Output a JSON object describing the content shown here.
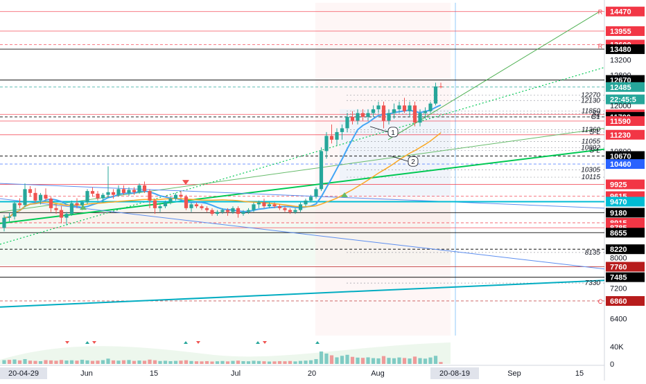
{
  "chart_data": {
    "type": "candlestick",
    "title": "",
    "xlabel": "",
    "ylabel": "",
    "ylim": [
      5950,
      14700
    ],
    "volume_ylim": [
      0,
      60000
    ],
    "price_axis_labels": [
      "13200",
      "12800",
      "12000",
      "10800",
      "8000",
      "7200",
      "6400"
    ],
    "price_tags": [
      {
        "value": 14470,
        "label": "14470",
        "color": "#f23645"
      },
      {
        "value": 13955,
        "label": "13955",
        "color": "#f23645"
      },
      {
        "value": 13600,
        "label": "13600",
        "color": "#f23645"
      },
      {
        "value": 13480,
        "label": "13480",
        "color": "#000000"
      },
      {
        "value": 12670,
        "label": "12670",
        "color": "#000000"
      },
      {
        "value": 12485,
        "label": "12485",
        "color": "#26a69a"
      },
      {
        "value": 12160,
        "label": "22:45:5",
        "color": "#26a69a"
      },
      {
        "value": 11765,
        "label": "11765",
        "color": "#f23645"
      },
      {
        "value": 11700,
        "label": "11700",
        "color": "#000000"
      },
      {
        "value": 11590,
        "label": "11590",
        "color": "#f23645"
      },
      {
        "value": 11230,
        "label": "11230",
        "color": "#f23645"
      },
      {
        "value": 10670,
        "label": "10670",
        "color": "#000000"
      },
      {
        "value": 10460,
        "label": "10460",
        "color": "#2962ff"
      },
      {
        "value": 9925,
        "label": "9925",
        "color": "#f23645"
      },
      {
        "value": 9615,
        "label": "9615",
        "color": "#f23645"
      },
      {
        "value": 9470,
        "label": "9470",
        "color": "#00bcd4"
      },
      {
        "value": 9180,
        "label": "9180",
        "color": "#000000"
      },
      {
        "value": 8915,
        "label": "8915",
        "color": "#f23645"
      },
      {
        "value": 8785,
        "label": "8785",
        "color": "#f23645"
      },
      {
        "value": 8655,
        "label": "8655",
        "color": "#000000"
      },
      {
        "value": 8220,
        "label": "8220",
        "color": "#000000"
      },
      {
        "value": 7760,
        "label": "7760",
        "color": "#b71c1c"
      },
      {
        "value": 7485,
        "label": "7485",
        "color": "#000000"
      },
      {
        "value": 6860,
        "label": "6860",
        "color": "#b71c1c"
      }
    ],
    "level_notes": [
      {
        "value": 12270,
        "label": "12270"
      },
      {
        "value": 12130,
        "label": "12130"
      },
      {
        "value": 11850,
        "label": "11850"
      },
      {
        "value": 11780,
        "label": "S2"
      },
      {
        "value": 11700,
        "label": "G1"
      },
      {
        "value": 11360,
        "label": "11360"
      },
      {
        "value": 11300,
        "label": "S-L"
      },
      {
        "value": 11055,
        "label": "11055"
      },
      {
        "value": 10892,
        "label": "10892"
      },
      {
        "value": 10820,
        "label": "S-L"
      },
      {
        "value": 10305,
        "label": "10305"
      },
      {
        "value": 10115,
        "label": "10115"
      },
      {
        "value": 8135,
        "label": "8135"
      },
      {
        "value": 7330,
        "label": "7330"
      }
    ],
    "edge_markers": [
      {
        "value": 14470,
        "label": "R"
      },
      {
        "value": 13570,
        "label": "R"
      },
      {
        "value": 6860,
        "label": "C"
      }
    ],
    "callouts": [
      {
        "label": "1",
        "value": 11300
      },
      {
        "label": "2",
        "value": 10530
      }
    ],
    "volume_axis_labels": [
      "40K",
      "0"
    ],
    "x_ticks": [
      "Jun",
      "15",
      "Jul",
      "20",
      "Aug",
      "Sep",
      "15"
    ],
    "start_date_label": "20-04-29",
    "current_date_label": "20-08-19",
    "candles": [
      [
        8780,
        9120,
        8690,
        9050
      ],
      [
        9050,
        9180,
        8950,
        9080
      ],
      [
        9080,
        9470,
        9000,
        9430
      ],
      [
        9430,
        9560,
        9300,
        9380
      ],
      [
        9380,
        9950,
        9320,
        9800
      ],
      [
        9800,
        9880,
        9600,
        9700
      ],
      [
        9700,
        9830,
        9450,
        9500
      ],
      [
        9500,
        9700,
        9400,
        9650
      ],
      [
        9650,
        9820,
        9500,
        9550
      ],
      [
        9550,
        9600,
        9200,
        9300
      ],
      [
        9300,
        9400,
        9150,
        9250
      ],
      [
        9250,
        9350,
        8900,
        9050
      ],
      [
        9050,
        9200,
        8850,
        9150
      ],
      [
        9150,
        9500,
        9100,
        9430
      ],
      [
        9430,
        9560,
        9300,
        9380
      ],
      [
        9380,
        9500,
        9250,
        9450
      ],
      [
        9450,
        9800,
        9400,
        9750
      ],
      [
        9750,
        9850,
        9600,
        9680
      ],
      [
        9680,
        9750,
        9500,
        9560
      ],
      [
        9560,
        9700,
        9450,
        9650
      ],
      [
        9650,
        10400,
        9560,
        9720
      ],
      [
        9720,
        9800,
        9550,
        9650
      ],
      [
        9650,
        9900,
        9600,
        9800
      ],
      [
        9800,
        9900,
        9650,
        9700
      ],
      [
        9700,
        9850,
        9620,
        9780
      ],
      [
        9780,
        9850,
        9650,
        9720
      ],
      [
        9720,
        9950,
        9680,
        9900
      ],
      [
        9900,
        10000,
        9700,
        9750
      ],
      [
        9750,
        9800,
        9300,
        9500
      ],
      [
        9500,
        9550,
        9150,
        9300
      ],
      [
        9300,
        9400,
        9200,
        9350
      ],
      [
        9350,
        9500,
        9300,
        9450
      ],
      [
        9450,
        9600,
        9400,
        9550
      ],
      [
        9550,
        9700,
        9500,
        9650
      ],
      [
        9650,
        9750,
        9550,
        9600
      ],
      [
        9600,
        9650,
        9250,
        9300
      ],
      [
        9300,
        9450,
        9200,
        9400
      ],
      [
        9400,
        9450,
        9300,
        9350
      ],
      [
        9350,
        9400,
        9250,
        9300
      ],
      [
        9300,
        9350,
        9200,
        9250
      ],
      [
        9250,
        9300,
        9100,
        9150
      ],
      [
        9150,
        9250,
        9100,
        9200
      ],
      [
        9200,
        9300,
        9150,
        9250
      ],
      [
        9250,
        9300,
        9100,
        9200
      ],
      [
        9200,
        9350,
        9150,
        9300
      ],
      [
        9300,
        9350,
        9050,
        9150
      ],
      [
        9150,
        9250,
        9100,
        9200
      ],
      [
        9200,
        9300,
        9150,
        9250
      ],
      [
        9250,
        9450,
        9200,
        9400
      ],
      [
        9400,
        9500,
        9300,
        9450
      ],
      [
        9450,
        9550,
        9300,
        9350
      ],
      [
        9350,
        9450,
        9300,
        9400
      ],
      [
        9400,
        9450,
        9300,
        9350
      ],
      [
        9350,
        9400,
        9250,
        9300
      ],
      [
        9300,
        9350,
        9200,
        9250
      ],
      [
        9250,
        9300,
        9150,
        9200
      ],
      [
        9200,
        9300,
        9150,
        9250
      ],
      [
        9250,
        9450,
        9200,
        9400
      ],
      [
        9400,
        9550,
        9350,
        9500
      ],
      [
        9500,
        9650,
        9450,
        9600
      ],
      [
        9600,
        9850,
        9550,
        9800
      ],
      [
        9800,
        10900,
        9750,
        10800
      ],
      [
        10800,
        11300,
        10600,
        11200
      ],
      [
        11200,
        11500,
        11000,
        11100
      ],
      [
        11100,
        11400,
        10950,
        11300
      ],
      [
        11300,
        11500,
        11100,
        11400
      ],
      [
        11400,
        11800,
        11300,
        11700
      ],
      [
        11700,
        11850,
        11500,
        11600
      ],
      [
        11600,
        11900,
        11500,
        11800
      ],
      [
        11800,
        11900,
        11600,
        11700
      ],
      [
        11700,
        11900,
        11600,
        11800
      ],
      [
        11800,
        12000,
        11700,
        11900
      ],
      [
        11900,
        12100,
        11800,
        12000
      ],
      [
        12000,
        12100,
        11400,
        11600
      ],
      [
        11600,
        11900,
        11500,
        11800
      ],
      [
        11800,
        12050,
        11650,
        11900
      ],
      [
        11900,
        12100,
        11800,
        12000
      ],
      [
        12000,
        12200,
        11800,
        11850
      ],
      [
        11850,
        12100,
        11700,
        12000
      ],
      [
        12000,
        12100,
        11450,
        11550
      ],
      [
        11550,
        11900,
        11450,
        11800
      ],
      [
        11800,
        11950,
        11650,
        11850
      ],
      [
        11850,
        12100,
        11800,
        12050
      ],
      [
        12050,
        12600,
        12000,
        12500
      ],
      [
        12500,
        12600,
        12450,
        12485
      ]
    ],
    "volumes": [
      3000,
      3200,
      3500,
      2800,
      3800,
      2600,
      2400,
      2200,
      3000,
      2800,
      2500,
      3100,
      2700,
      2900,
      2600,
      3300,
      2800,
      2400,
      2600,
      3000,
      4200,
      2800,
      2600,
      2900,
      3100,
      2400,
      2700,
      2500,
      3400,
      2900,
      2300,
      2500,
      2200,
      2400,
      2600,
      2900,
      2300,
      2100,
      2000,
      2200,
      1900,
      2100,
      2300,
      2000,
      2400,
      2600,
      2200,
      2100,
      2500,
      2300,
      2100,
      1900,
      2000,
      2200,
      2100,
      2300,
      2000,
      2400,
      2600,
      2900,
      3800,
      9800,
      8200,
      6800,
      5200,
      6400,
      7200,
      5600,
      5000,
      4800,
      5200,
      4600,
      4400,
      6200,
      4800,
      4500,
      5100,
      4700,
      4300,
      5800,
      4600,
      4200,
      5100,
      6400,
      1500
    ],
    "volume_colors": [
      "up",
      "down",
      "up",
      "down",
      "up",
      "down",
      "down",
      "up",
      "down",
      "down",
      "down",
      "down",
      "up",
      "up",
      "down",
      "up",
      "up",
      "down",
      "down",
      "up",
      "up",
      "down",
      "up",
      "down",
      "up",
      "down",
      "up",
      "down",
      "down",
      "down",
      "up",
      "up",
      "up",
      "up",
      "down",
      "down",
      "up",
      "down",
      "down",
      "down",
      "down",
      "up",
      "up",
      "down",
      "up",
      "down",
      "up",
      "up",
      "up",
      "up",
      "down",
      "up",
      "down",
      "down",
      "down",
      "down",
      "up",
      "up",
      "up",
      "up",
      "up",
      "up",
      "up",
      "down",
      "up",
      "up",
      "up",
      "down",
      "up",
      "down",
      "up",
      "up",
      "up",
      "down",
      "up",
      "up",
      "up",
      "down",
      "up",
      "down",
      "up",
      "up",
      "up",
      "up",
      "down"
    ]
  }
}
